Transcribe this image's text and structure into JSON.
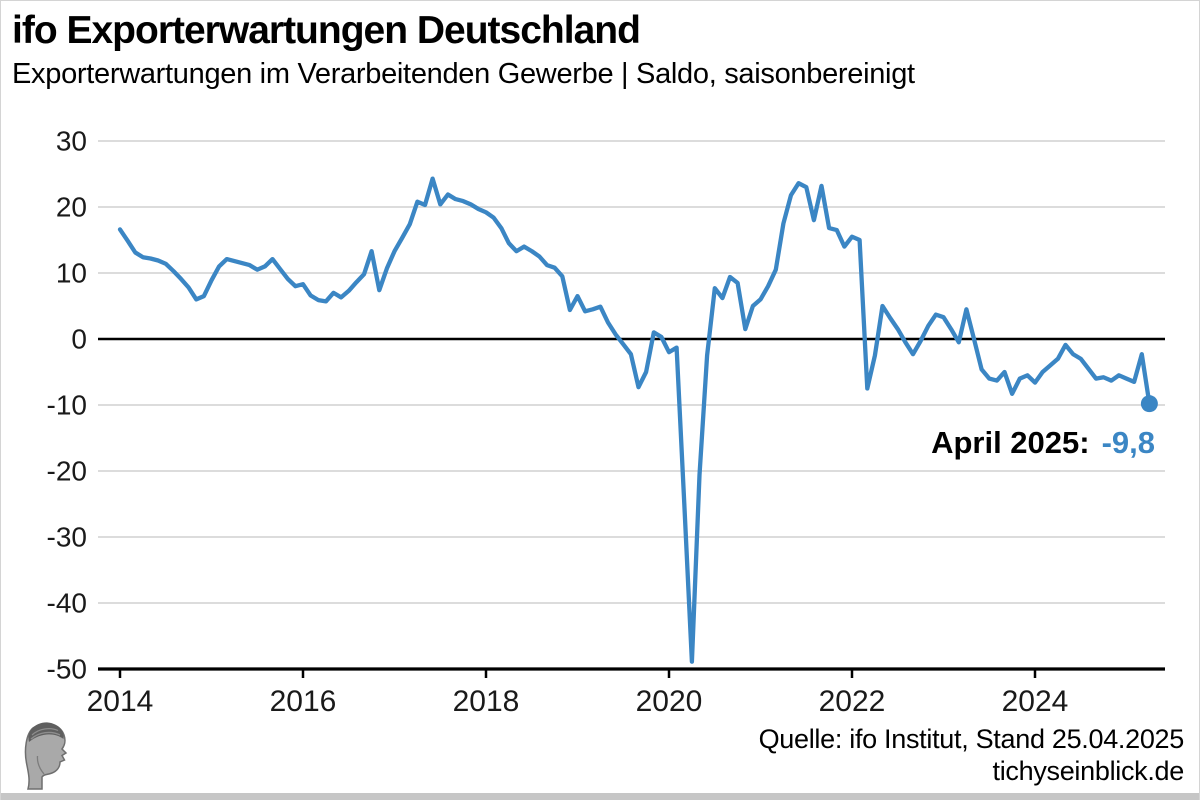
{
  "header": {
    "title": "ifo Exporterwartungen Deutschland",
    "subtitle": "Exporterwartungen im Verarbeitenden Gewerbe | Saldo, saisonbereinigt"
  },
  "annotation": {
    "label": "April 2025:",
    "value": "-9,8"
  },
  "footer": {
    "source": "Quelle: ifo Institut, Stand 25.04.2025",
    "site": "tichyseinblick.de",
    "logo_icon": "hermes-head-engraving"
  },
  "colors": {
    "line": "#3b86c4",
    "grid": "#dcdcdc",
    "zero_line": "#000000",
    "axis": "#000000",
    "tick_text": "#1a1a1a",
    "bottom_bar": "#c6c6c6"
  },
  "chart_data": {
    "type": "line",
    "title": "ifo Exporterwartungen Deutschland",
    "subtitle": "Exporterwartungen im Verarbeitenden Gewerbe | Saldo, saisonbereinigt",
    "series_name": "Exporterwartungen Saldo, saisonbereinigt",
    "freq": "monthly",
    "start": "2014-01",
    "end": "2025-04",
    "x_ticks": [
      2014,
      2016,
      2018,
      2020,
      2022,
      2024
    ],
    "x_tick_labels": [
      "2014",
      "2016",
      "2018",
      "2020",
      "2022",
      "2024"
    ],
    "y_ticks": [
      30,
      20,
      10,
      0,
      -10,
      -20,
      -30,
      -40,
      -50
    ],
    "y_tick_labels": [
      "30",
      "20",
      "10",
      "0",
      "-10",
      "-20",
      "-30",
      "-40",
      "-50"
    ],
    "ylim": [
      -50,
      30
    ],
    "grid": "horizontal-only",
    "zero_line": true,
    "legend": "none",
    "last_point": {
      "label": "April 2025",
      "value": -9.8
    },
    "values": [
      16.6,
      14.9,
      13.1,
      12.4,
      12.2,
      11.9,
      11.4,
      10.3,
      9.1,
      7.8,
      6.0,
      6.5,
      8.9,
      11.0,
      12.1,
      11.8,
      11.5,
      11.2,
      10.5,
      11.0,
      12.1,
      10.6,
      9.1,
      8.0,
      8.3,
      6.6,
      5.9,
      5.7,
      7.0,
      6.3,
      7.3,
      8.6,
      9.8,
      13.3,
      7.4,
      10.7,
      13.3,
      15.3,
      17.4,
      20.8,
      20.3,
      24.3,
      20.4,
      21.9,
      21.2,
      20.9,
      20.4,
      19.7,
      19.2,
      18.4,
      16.8,
      14.5,
      13.3,
      14.0,
      13.3,
      12.5,
      11.2,
      10.8,
      9.5,
      4.4,
      6.5,
      4.2,
      4.5,
      4.9,
      2.5,
      0.7,
      -0.8,
      -2.3,
      -7.3,
      -5.0,
      1.0,
      0.3,
      -2.0,
      -1.3,
      -25.0,
      -48.9,
      -20.6,
      -2.5,
      7.7,
      6.2,
      9.4,
      8.5,
      1.5,
      5.0,
      6.0,
      8.0,
      10.5,
      17.5,
      21.8,
      23.6,
      23.0,
      18.0,
      23.2,
      16.8,
      16.5,
      14.0,
      15.5,
      15.0,
      -7.5,
      -2.5,
      5.0,
      3.2,
      1.5,
      -0.5,
      -2.3,
      -0.3,
      2.0,
      3.7,
      3.3,
      1.5,
      -0.5,
      4.5,
      0.0,
      -4.6,
      -6.0,
      -6.3,
      -5.0,
      -8.3,
      -6.0,
      -5.5,
      -6.6,
      -5.0,
      -4.0,
      -3.0,
      -0.9,
      -2.3,
      -3.0,
      -4.5,
      -6.0,
      -5.8,
      -6.3,
      -5.5,
      -6.0,
      -6.5,
      -2.3,
      -9.8
    ]
  }
}
